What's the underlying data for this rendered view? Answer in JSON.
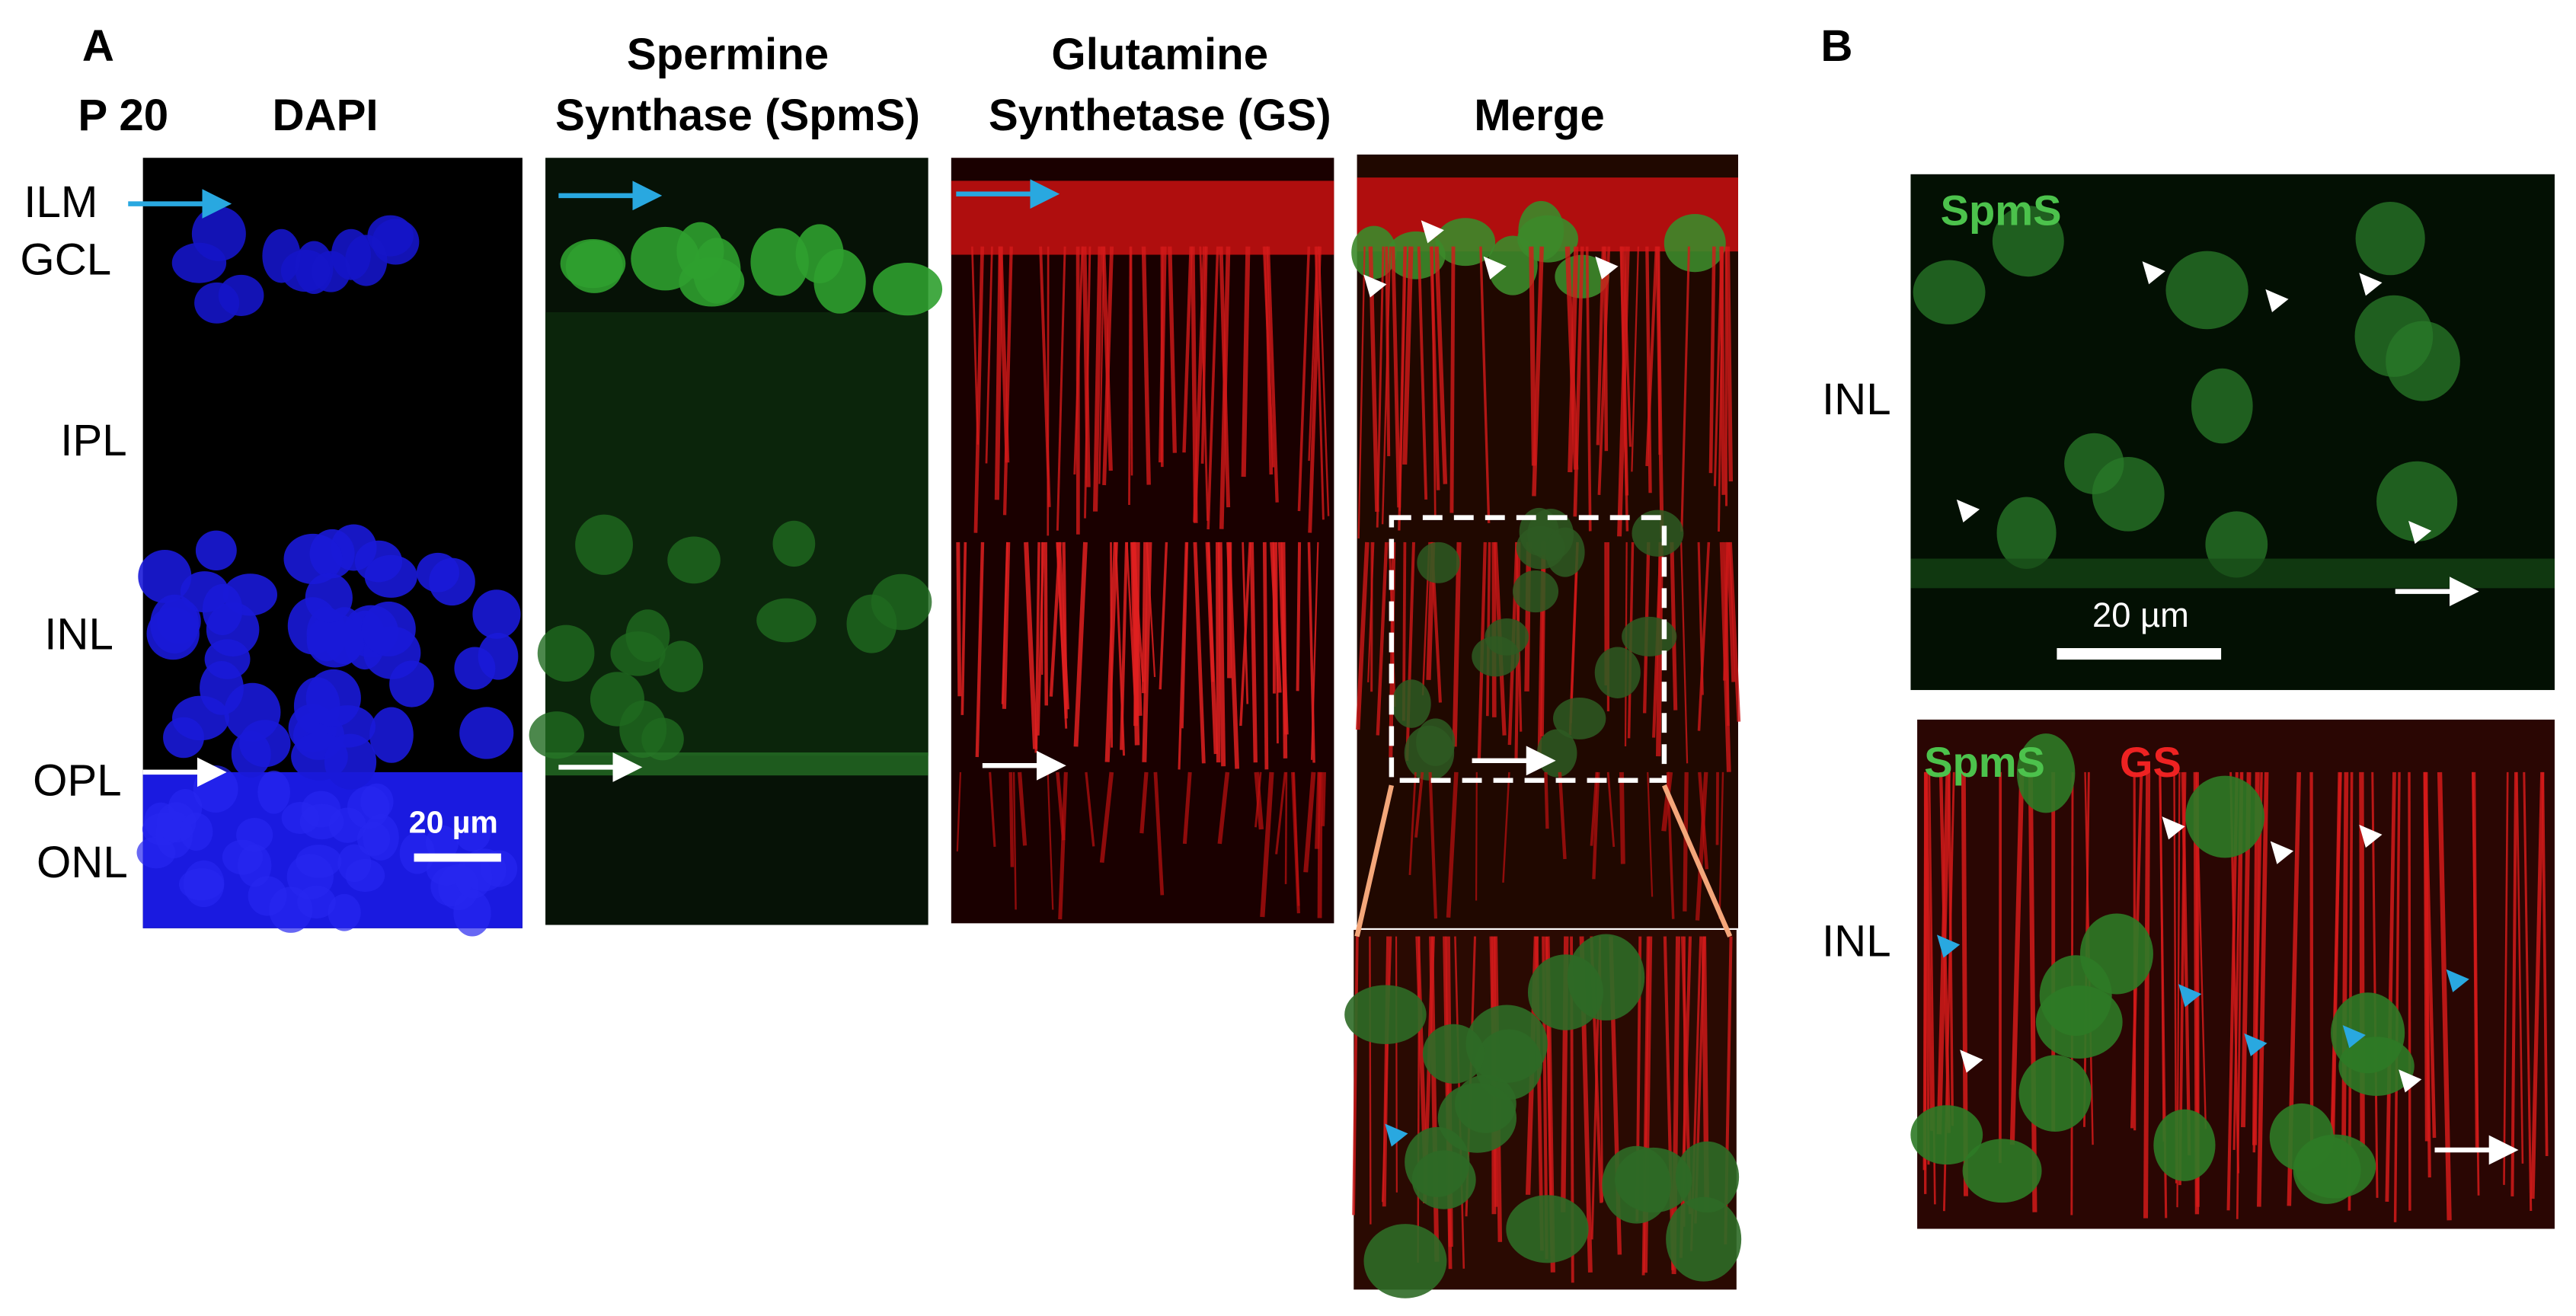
{
  "panel_a": {
    "label": "A",
    "age": "P 20",
    "columns": [
      {
        "title": [
          "DAPI"
        ]
      },
      {
        "title": [
          "Spermine",
          "Synthase (SpmS)"
        ]
      },
      {
        "title": [
          "Glutamine",
          "Synthetase (GS)"
        ]
      },
      {
        "title": [
          "Merge"
        ]
      }
    ],
    "layers": [
      "ILM",
      "GCL",
      "IPL",
      "INL",
      "OPL",
      "ONL"
    ],
    "scale_bar": "20 µm"
  },
  "panel_b": {
    "label": "B",
    "top": {
      "stain": "SpmS",
      "layer": "INL",
      "scale_bar": "20 µm"
    },
    "bottom": {
      "stains": [
        "SpmS",
        "GS"
      ],
      "layer": "INL"
    }
  }
}
